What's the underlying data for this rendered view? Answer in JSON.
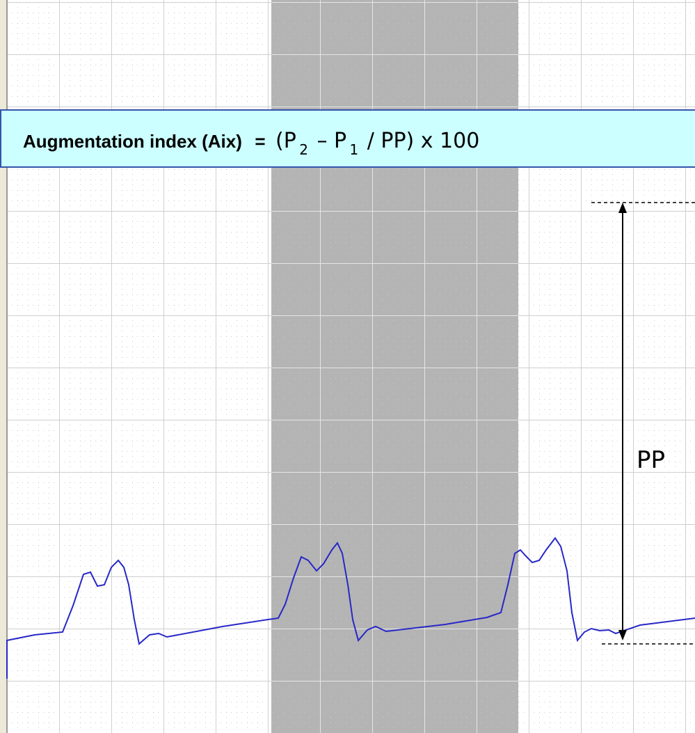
{
  "formula_box": {
    "label": "Augmentation index (Aix)",
    "equals": "=",
    "expression": [
      "(P",
      "2",
      "– P",
      "1",
      "/ PP) x 100"
    ]
  },
  "annotation": {
    "label": "PP"
  }
}
